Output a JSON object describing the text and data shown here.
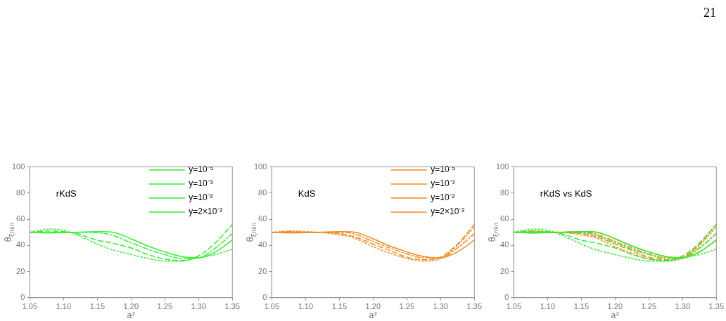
{
  "chart_data": [
    {
      "type": "line",
      "xlabel": "a²",
      "ylabel": "θ$_{ξmin}$",
      "xlim": [
        1.05,
        1.35
      ],
      "xticks": [
        {
          "value": 1.05,
          "label": "1.05"
        },
        {
          "value": 1.1,
          "label": "1.10"
        },
        {
          "value": 1.15,
          "label": "1.15"
        },
        {
          "value": 1.2,
          "label": "1.20"
        },
        {
          "value": 1.25,
          "label": "1.25"
        },
        {
          "value": 1.3,
          "label": "1.30"
        },
        {
          "value": 1.35,
          "label": "1.35"
        }
      ],
      "ylim": [
        0,
        100
      ],
      "yticks": [
        0,
        20,
        40,
        60,
        80,
        100
      ],
      "grid": false,
      "legend": "top right",
      "annotations": [
        "rKdS"
      ],
      "x": [
        1.05,
        1.08,
        1.1,
        1.12,
        1.15,
        1.17,
        1.2,
        1.225,
        1.25,
        1.275,
        1.3,
        1.325,
        1.35
      ],
      "series": [
        {
          "name": "y=10⁻⁵",
          "color": "#33ee33",
          "line_style": "solid",
          "values": [
            50,
            49.5,
            49.7,
            50,
            50.5,
            50.3,
            45,
            39.5,
            35,
            31.5,
            30.5,
            35,
            44
          ]
        },
        {
          "name": "y=10⁻³",
          "color": "#33ee33",
          "line_style": "dashdot",
          "values": [
            50,
            50,
            50,
            50,
            49.7,
            48,
            42,
            37,
            33,
            30,
            30.5,
            38,
            49
          ]
        },
        {
          "name": "y=10⁻²",
          "color": "#33ee33",
          "line_style": "dashed",
          "values": [
            50,
            51,
            50.5,
            49,
            44,
            42,
            38,
            33,
            29.5,
            28.5,
            32,
            42,
            56
          ]
        },
        {
          "name": "y=2×10⁻²",
          "color": "#33ee33",
          "line_style": "dotted",
          "values": [
            50,
            52.5,
            51.5,
            48,
            41,
            37,
            33,
            30,
            28,
            28,
            30.5,
            33,
            37
          ]
        }
      ]
    },
    {
      "type": "line",
      "xlabel": "a²",
      "ylabel": "θ$_{ξmin}$",
      "xlim": [
        1.05,
        1.35
      ],
      "xticks": [
        {
          "value": 1.05,
          "label": "1.05"
        },
        {
          "value": 1.1,
          "label": "1.10"
        },
        {
          "value": 1.15,
          "label": "1.15"
        },
        {
          "value": 1.2,
          "label": "1.20"
        },
        {
          "value": 1.25,
          "label": "1.25"
        },
        {
          "value": 1.3,
          "label": "1.30"
        },
        {
          "value": 1.35,
          "label": "1.35"
        }
      ],
      "ylim": [
        0,
        100
      ],
      "yticks": [
        0,
        20,
        40,
        60,
        80,
        100
      ],
      "grid": false,
      "legend": "top right",
      "annotations": [
        "KdS"
      ],
      "x": [
        1.05,
        1.08,
        1.1,
        1.12,
        1.15,
        1.17,
        1.2,
        1.225,
        1.25,
        1.275,
        1.3,
        1.325,
        1.35
      ],
      "series": [
        {
          "name": "y=10⁻⁵",
          "color": "#f5891f",
          "line_style": "solid",
          "values": [
            50,
            49.5,
            49.7,
            50,
            50.5,
            50.3,
            45,
            39.5,
            35,
            31.5,
            30.5,
            35,
            44
          ]
        },
        {
          "name": "y=10⁻³",
          "color": "#f5891f",
          "line_style": "dashdot",
          "values": [
            50,
            50,
            50,
            50,
            50,
            49,
            43,
            38,
            33.5,
            30.5,
            30.5,
            38,
            49
          ]
        },
        {
          "name": "y=10⁻²",
          "color": "#f5891f",
          "line_style": "dashed",
          "values": [
            50,
            50.5,
            50,
            50,
            49,
            47,
            41,
            36,
            31,
            29,
            31,
            41,
            56
          ]
        },
        {
          "name": "y=2×10⁻²",
          "color": "#f5891f",
          "line_style": "dotted",
          "values": [
            50,
            51,
            50.5,
            50,
            48,
            46,
            39,
            34,
            30,
            28,
            30,
            40,
            54
          ]
        }
      ]
    },
    {
      "type": "line",
      "xlabel": "a²",
      "ylabel": "θ$_{ξmin}$",
      "xlim": [
        1.05,
        1.35
      ],
      "xticks": [
        {
          "value": 1.05,
          "label": "1.05"
        },
        {
          "value": 1.1,
          "label": "1.10"
        },
        {
          "value": 1.15,
          "label": "1.15"
        },
        {
          "value": 1.2,
          "label": "1.20"
        },
        {
          "value": 1.25,
          "label": "1.25"
        },
        {
          "value": 1.3,
          "label": "1.30"
        },
        {
          "value": 1.35,
          "label": "1.35"
        }
      ],
      "ylim": [
        0,
        100
      ],
      "yticks": [
        0,
        20,
        40,
        60,
        80,
        100
      ],
      "grid": false,
      "annotations": [
        "rKdS vs KdS",
        "21"
      ],
      "x": [
        1.05,
        1.08,
        1.1,
        1.12,
        1.15,
        1.17,
        1.2,
        1.225,
        1.25,
        1.275,
        1.3,
        1.325,
        1.35
      ],
      "series": [
        {
          "color": "#33ee33",
          "line_style": "solid",
          "values": [
            50,
            49.5,
            49.7,
            50,
            50.5,
            50.3,
            45,
            39.5,
            35,
            31.5,
            30.5,
            35,
            44
          ]
        },
        {
          "color": "#33ee33",
          "line_style": "dashdot",
          "values": [
            50,
            50,
            50,
            50,
            49.7,
            48,
            42,
            37,
            33,
            30,
            30.5,
            38,
            49
          ]
        },
        {
          "color": "#33ee33",
          "line_style": "dashed",
          "values": [
            50,
            51,
            50.5,
            49,
            44,
            42,
            38,
            33,
            29.5,
            28.5,
            32,
            42,
            56
          ]
        },
        {
          "color": "#33ee33",
          "line_style": "dotted",
          "values": [
            50,
            52.5,
            51.5,
            48,
            41,
            37,
            33,
            30,
            28,
            28,
            30.5,
            33,
            37
          ]
        },
        {
          "color": "#f5891f",
          "line_style": "solid",
          "values": [
            50,
            49.5,
            49.7,
            50,
            50.5,
            50.3,
            45,
            39.5,
            35,
            31.5,
            30.5,
            35,
            44
          ]
        },
        {
          "color": "#f5891f",
          "line_style": "dashdot",
          "values": [
            50,
            50,
            50,
            50,
            50,
            49,
            43,
            38,
            33.5,
            30.5,
            30.5,
            38,
            49
          ]
        },
        {
          "color": "#f5891f",
          "line_style": "dashed",
          "values": [
            50,
            50.5,
            50,
            50,
            49,
            47,
            41,
            36,
            31,
            29,
            31,
            41,
            56
          ]
        },
        {
          "color": "#f5891f",
          "line_style": "dotted",
          "values": [
            50,
            51,
            50.5,
            50,
            48,
            46,
            39,
            34,
            30,
            28,
            30,
            40,
            54
          ]
        }
      ]
    }
  ]
}
